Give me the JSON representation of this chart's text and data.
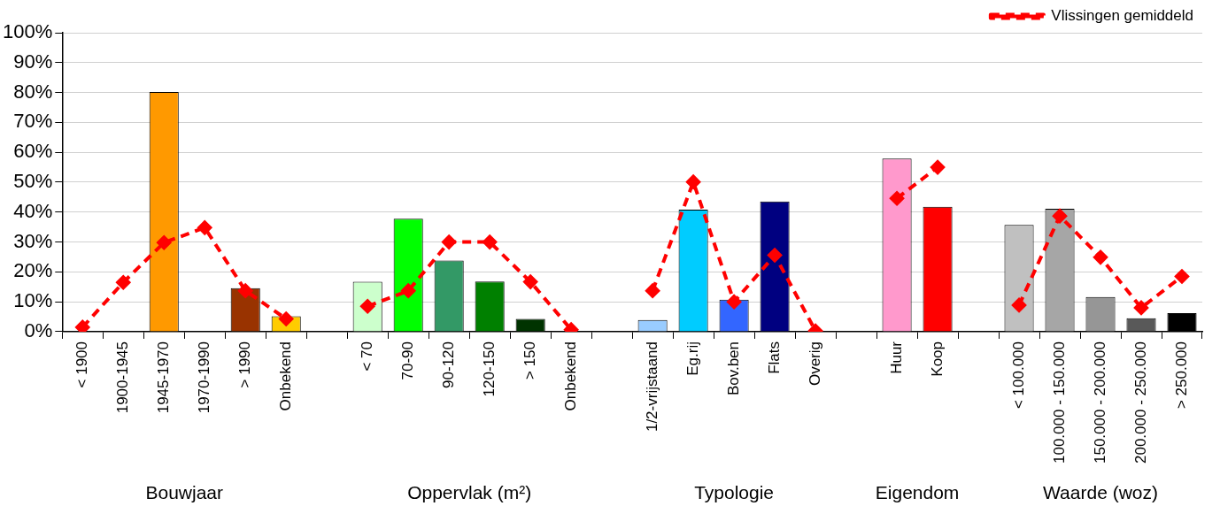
{
  "chart_data": {
    "type": "bar",
    "categories": [
      "< 1900",
      "1900-1945",
      "1945-1970",
      "1970-1990",
      "> 1990",
      "Onbekend",
      null,
      "< 70",
      "70-90",
      "90-120",
      "120-150",
      "> 150",
      "Onbekend",
      null,
      "1/2-vrijstaand",
      "Eg.rij",
      "Bov.ben",
      "Flats",
      "Overig",
      null,
      "Huur",
      "Koop",
      null,
      "< 100.000",
      "100.000 - 150.000",
      "150.000 - 200.000",
      "200.000 - 250.000",
      "> 250.000"
    ],
    "series": [
      {
        "colors": [
          null,
          null,
          "#ff9900",
          null,
          "#993300",
          "#ffcc00",
          null,
          "#ccffcc",
          "#00ff00",
          "#339966",
          "#008000",
          "#003300",
          "#003300",
          null,
          "#99ccff",
          "#00ccff",
          "#3366ff",
          "#000080",
          "#333333",
          null,
          "#ff99cc",
          "#ff0000",
          null,
          "#c0c0c0",
          "#a6a6a6",
          "#969696",
          "#595959",
          "#000000"
        ],
        "values": [
          null,
          null,
          80.2,
          null,
          14.6,
          5.2,
          null,
          16.7,
          37.8,
          23.8,
          16.8,
          4.3,
          null,
          null,
          3.9,
          40.8,
          10.7,
          43.6,
          null,
          null,
          57.9,
          41.8,
          null,
          35.7,
          41.1,
          11.6,
          4.5,
          6.2
        ]
      },
      {
        "type": "line",
        "name": "Vlissingen gemiddeld",
        "color": "#ff0000",
        "values": [
          1.5,
          16.5,
          29.8,
          34.8,
          13.7,
          4.3,
          null,
          8.5,
          13.7,
          30,
          30,
          16.7,
          0.7,
          null,
          13.7,
          50.1,
          10,
          25.6,
          0.3,
          null,
          44.6,
          55,
          null,
          8.9,
          38.7,
          24.9,
          8,
          18.5
        ]
      }
    ],
    "ylim": [
      0,
      100
    ],
    "yticks": [
      {
        "value": 0,
        "label": "0%"
      },
      {
        "value": 10,
        "label": "10%"
      },
      {
        "value": 20,
        "label": "20%"
      },
      {
        "value": 30,
        "label": "30%"
      },
      {
        "value": 40,
        "label": "40%"
      },
      {
        "value": 50,
        "label": "50%"
      },
      {
        "value": 60,
        "label": "60%"
      },
      {
        "value": 70,
        "label": "70%"
      },
      {
        "value": 80,
        "label": "80%"
      },
      {
        "value": 90,
        "label": "90%"
      },
      {
        "value": 100,
        "label": "100%"
      }
    ],
    "grid": "y",
    "legend": "top right",
    "marker": "diamond",
    "line_style": "dashed",
    "annotations": [
      "Bouwjaar",
      "Oppervlak (m²)",
      "Typologie",
      "Eigendom",
      "Waarde (woz)"
    ]
  }
}
